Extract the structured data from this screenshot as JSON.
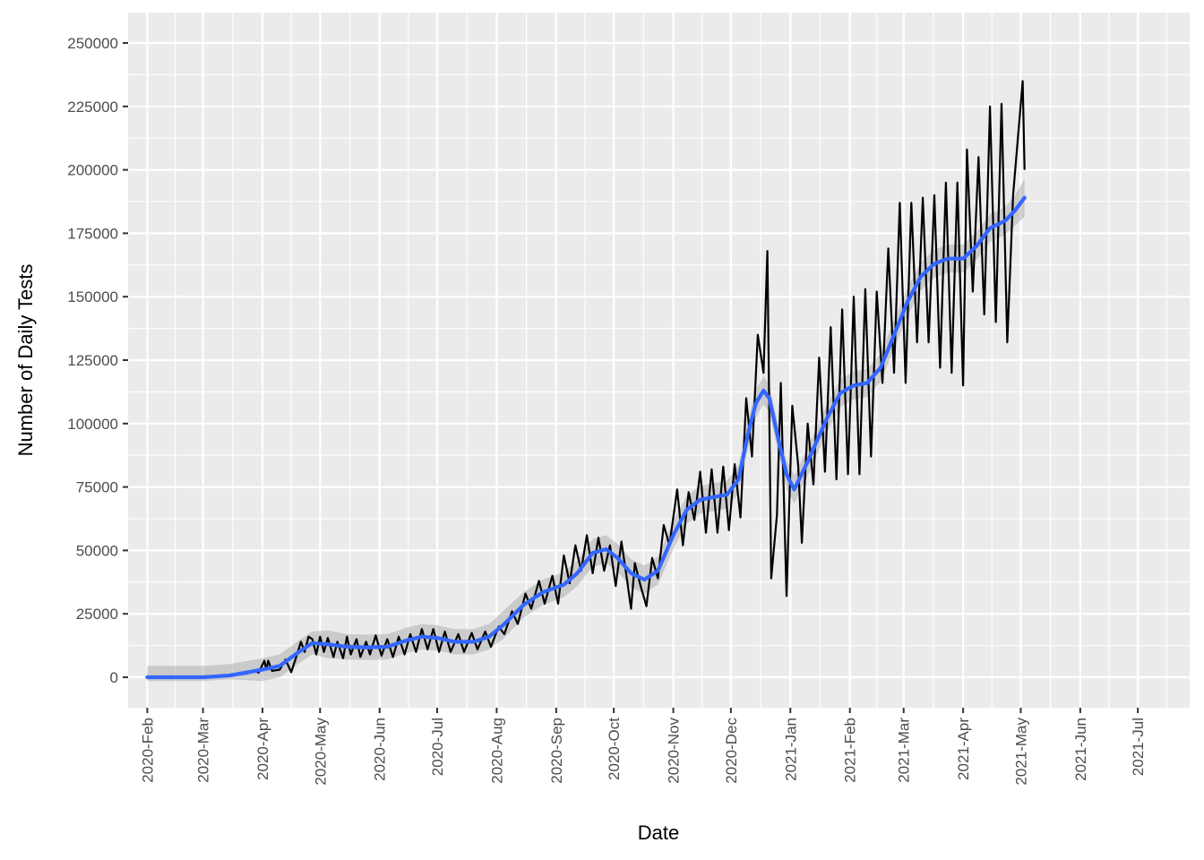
{
  "chart_data": {
    "type": "line",
    "title": "",
    "xlabel": "Date",
    "ylabel": "Number of Daily Tests",
    "xlim": [
      "2020-01-22",
      "2021-07-28"
    ],
    "ylim": [
      -12000,
      262000
    ],
    "grid": true,
    "legend": "none",
    "x_ticks": [
      {
        "date": "2020-02-01",
        "label": "2020-Feb"
      },
      {
        "date": "2020-03-01",
        "label": "2020-Mar"
      },
      {
        "date": "2020-04-01",
        "label": "2020-Apr"
      },
      {
        "date": "2020-05-01",
        "label": "2020-May"
      },
      {
        "date": "2020-06-01",
        "label": "2020-Jun"
      },
      {
        "date": "2020-07-01",
        "label": "2020-Jul"
      },
      {
        "date": "2020-08-01",
        "label": "2020-Aug"
      },
      {
        "date": "2020-09-01",
        "label": "2020-Sep"
      },
      {
        "date": "2020-10-01",
        "label": "2020-Oct"
      },
      {
        "date": "2020-11-01",
        "label": "2020-Nov"
      },
      {
        "date": "2020-12-01",
        "label": "2020-Dec"
      },
      {
        "date": "2021-01-01",
        "label": "2021-Jan"
      },
      {
        "date": "2021-02-01",
        "label": "2021-Feb"
      },
      {
        "date": "2021-03-01",
        "label": "2021-Mar"
      },
      {
        "date": "2021-04-01",
        "label": "2021-Apr"
      },
      {
        "date": "2021-05-01",
        "label": "2021-May"
      },
      {
        "date": "2021-06-01",
        "label": "2021-Jun"
      },
      {
        "date": "2021-07-01",
        "label": "2021-Jul"
      }
    ],
    "y_ticks": [
      {
        "value": 0,
        "label": "0"
      },
      {
        "value": 25000,
        "label": "25000"
      },
      {
        "value": 50000,
        "label": "50000"
      },
      {
        "value": 75000,
        "label": "75000"
      },
      {
        "value": 100000,
        "label": "100000"
      },
      {
        "value": 125000,
        "label": "125000"
      },
      {
        "value": 150000,
        "label": "150000"
      },
      {
        "value": 175000,
        "label": "175000"
      },
      {
        "value": 200000,
        "label": "200000"
      },
      {
        "value": 225000,
        "label": "225000"
      },
      {
        "value": 250000,
        "label": "250000"
      }
    ],
    "series": [
      {
        "kind": "daily",
        "color": "#000000",
        "points": [
          [
            "2020-02-01",
            0
          ],
          [
            "2020-02-15",
            0
          ],
          [
            "2020-03-01",
            0
          ],
          [
            "2020-03-10",
            200
          ],
          [
            "2020-03-18",
            800
          ],
          [
            "2020-03-24",
            1500
          ],
          [
            "2020-03-28",
            2500
          ],
          [
            "2020-03-30",
            1800
          ],
          [
            "2020-04-02",
            6500
          ],
          [
            "2020-04-03",
            3000
          ],
          [
            "2020-04-04",
            6500
          ],
          [
            "2020-04-06",
            2500
          ],
          [
            "2020-04-10",
            3000
          ],
          [
            "2020-04-13",
            7000
          ],
          [
            "2020-04-16",
            2000
          ],
          [
            "2020-04-19",
            9000
          ],
          [
            "2020-04-21",
            14000
          ],
          [
            "2020-04-23",
            10000
          ],
          [
            "2020-04-25",
            16000
          ],
          [
            "2020-04-27",
            15000
          ],
          [
            "2020-04-29",
            9000
          ],
          [
            "2020-05-01",
            16000
          ],
          [
            "2020-05-03",
            10000
          ],
          [
            "2020-05-05",
            15500
          ],
          [
            "2020-05-08",
            8000
          ],
          [
            "2020-05-10",
            14000
          ],
          [
            "2020-05-13",
            7500
          ],
          [
            "2020-05-15",
            16000
          ],
          [
            "2020-05-17",
            9000
          ],
          [
            "2020-05-20",
            15000
          ],
          [
            "2020-05-22",
            8000
          ],
          [
            "2020-05-25",
            14000
          ],
          [
            "2020-05-27",
            9000
          ],
          [
            "2020-05-30",
            16500
          ],
          [
            "2020-06-02",
            8500
          ],
          [
            "2020-06-05",
            15000
          ],
          [
            "2020-06-08",
            8000
          ],
          [
            "2020-06-11",
            16000
          ],
          [
            "2020-06-14",
            9000
          ],
          [
            "2020-06-17",
            17000
          ],
          [
            "2020-06-20",
            10000
          ],
          [
            "2020-06-23",
            19000
          ],
          [
            "2020-06-26",
            11000
          ],
          [
            "2020-06-29",
            19000
          ],
          [
            "2020-07-02",
            10000
          ],
          [
            "2020-07-05",
            18000
          ],
          [
            "2020-07-08",
            10000
          ],
          [
            "2020-07-12",
            17000
          ],
          [
            "2020-07-15",
            10000
          ],
          [
            "2020-07-19",
            17500
          ],
          [
            "2020-07-22",
            11000
          ],
          [
            "2020-07-26",
            18000
          ],
          [
            "2020-07-29",
            12000
          ],
          [
            "2020-08-02",
            20000
          ],
          [
            "2020-08-05",
            17000
          ],
          [
            "2020-08-09",
            26000
          ],
          [
            "2020-08-12",
            21000
          ],
          [
            "2020-08-16",
            33000
          ],
          [
            "2020-08-19",
            27000
          ],
          [
            "2020-08-23",
            38000
          ],
          [
            "2020-08-26",
            29000
          ],
          [
            "2020-08-30",
            40000
          ],
          [
            "2020-09-02",
            29000
          ],
          [
            "2020-09-05",
            48000
          ],
          [
            "2020-09-08",
            37000
          ],
          [
            "2020-09-11",
            52000
          ],
          [
            "2020-09-14",
            42000
          ],
          [
            "2020-09-17",
            56000
          ],
          [
            "2020-09-20",
            41000
          ],
          [
            "2020-09-23",
            55000
          ],
          [
            "2020-09-26",
            42000
          ],
          [
            "2020-09-29",
            52000
          ],
          [
            "2020-10-02",
            36000
          ],
          [
            "2020-10-05",
            53500
          ],
          [
            "2020-10-08",
            38000
          ],
          [
            "2020-10-10",
            27000
          ],
          [
            "2020-10-12",
            45000
          ],
          [
            "2020-10-15",
            36000
          ],
          [
            "2020-10-18",
            28000
          ],
          [
            "2020-10-21",
            47000
          ],
          [
            "2020-10-24",
            39000
          ],
          [
            "2020-10-27",
            60000
          ],
          [
            "2020-10-30",
            52000
          ],
          [
            "2020-11-03",
            74000
          ],
          [
            "2020-11-06",
            52000
          ],
          [
            "2020-11-09",
            73000
          ],
          [
            "2020-11-12",
            62000
          ],
          [
            "2020-11-15",
            81000
          ],
          [
            "2020-11-18",
            57000
          ],
          [
            "2020-11-21",
            82000
          ],
          [
            "2020-11-24",
            57000
          ],
          [
            "2020-11-27",
            83000
          ],
          [
            "2020-11-30",
            58000
          ],
          [
            "2020-12-03",
            84000
          ],
          [
            "2020-12-06",
            63000
          ],
          [
            "2020-12-09",
            110000
          ],
          [
            "2020-12-12",
            87000
          ],
          [
            "2020-12-15",
            135000
          ],
          [
            "2020-12-18",
            120000
          ],
          [
            "2020-12-20",
            168000
          ],
          [
            "2020-12-22",
            39000
          ],
          [
            "2020-12-25",
            64000
          ],
          [
            "2020-12-27",
            116000
          ],
          [
            "2020-12-30",
            32000
          ],
          [
            "2021-01-02",
            107000
          ],
          [
            "2021-01-05",
            84000
          ],
          [
            "2021-01-07",
            53000
          ],
          [
            "2021-01-10",
            100000
          ],
          [
            "2021-01-13",
            76000
          ],
          [
            "2021-01-16",
            126000
          ],
          [
            "2021-01-19",
            81000
          ],
          [
            "2021-01-22",
            138000
          ],
          [
            "2021-01-25",
            78000
          ],
          [
            "2021-01-28",
            145000
          ],
          [
            "2021-01-31",
            80000
          ],
          [
            "2021-02-03",
            150000
          ],
          [
            "2021-02-06",
            80000
          ],
          [
            "2021-02-09",
            153000
          ],
          [
            "2021-02-12",
            87000
          ],
          [
            "2021-02-15",
            152000
          ],
          [
            "2021-02-18",
            116000
          ],
          [
            "2021-02-21",
            169000
          ],
          [
            "2021-02-24",
            120000
          ],
          [
            "2021-02-27",
            187000
          ],
          [
            "2021-03-02",
            116000
          ],
          [
            "2021-03-05",
            187000
          ],
          [
            "2021-03-08",
            132000
          ],
          [
            "2021-03-11",
            189000
          ],
          [
            "2021-03-14",
            132000
          ],
          [
            "2021-03-17",
            190000
          ],
          [
            "2021-03-20",
            122000
          ],
          [
            "2021-03-23",
            195000
          ],
          [
            "2021-03-26",
            120000
          ],
          [
            "2021-03-29",
            195000
          ],
          [
            "2021-04-01",
            115000
          ],
          [
            "2021-04-03",
            208000
          ],
          [
            "2021-04-06",
            152000
          ],
          [
            "2021-04-09",
            205000
          ],
          [
            "2021-04-12",
            143000
          ],
          [
            "2021-04-15",
            225000
          ],
          [
            "2021-04-18",
            140000
          ],
          [
            "2021-04-21",
            226000
          ],
          [
            "2021-04-24",
            132000
          ],
          [
            "2021-04-27",
            190000
          ],
          [
            "2021-05-02",
            235000
          ],
          [
            "2021-05-03",
            200000
          ]
        ]
      },
      {
        "kind": "smooth",
        "color": "#3366ff",
        "points": [
          [
            "2020-02-01",
            0
          ],
          [
            "2020-03-01",
            0
          ],
          [
            "2020-03-15",
            700
          ],
          [
            "2020-04-01",
            3000
          ],
          [
            "2020-04-10",
            4500
          ],
          [
            "2020-04-20",
            10000
          ],
          [
            "2020-04-27",
            13500
          ],
          [
            "2020-05-05",
            13000
          ],
          [
            "2020-05-15",
            12000
          ],
          [
            "2020-05-25",
            11800
          ],
          [
            "2020-06-05",
            12000
          ],
          [
            "2020-06-15",
            14500
          ],
          [
            "2020-06-23",
            16000
          ],
          [
            "2020-07-01",
            15500
          ],
          [
            "2020-07-10",
            14000
          ],
          [
            "2020-07-20",
            14000
          ],
          [
            "2020-07-28",
            16000
          ],
          [
            "2020-08-05",
            21000
          ],
          [
            "2020-08-15",
            28500
          ],
          [
            "2020-08-25",
            33500
          ],
          [
            "2020-09-05",
            36500
          ],
          [
            "2020-09-12",
            41000
          ],
          [
            "2020-09-20",
            49000
          ],
          [
            "2020-09-27",
            50500
          ],
          [
            "2020-10-03",
            47000
          ],
          [
            "2020-10-10",
            41000
          ],
          [
            "2020-10-17",
            38500
          ],
          [
            "2020-10-24",
            42000
          ],
          [
            "2020-11-01",
            56000
          ],
          [
            "2020-11-08",
            66000
          ],
          [
            "2020-11-15",
            70000
          ],
          [
            "2020-11-22",
            71000
          ],
          [
            "2020-11-29",
            72000
          ],
          [
            "2020-12-05",
            78000
          ],
          [
            "2020-12-10",
            96000
          ],
          [
            "2020-12-14",
            108000
          ],
          [
            "2020-12-18",
            113000
          ],
          [
            "2020-12-21",
            110000
          ],
          [
            "2020-12-26",
            93000
          ],
          [
            "2020-12-30",
            80000
          ],
          [
            "2021-01-03",
            74000
          ],
          [
            "2021-01-10",
            85000
          ],
          [
            "2021-01-20",
            102000
          ],
          [
            "2021-01-27",
            112000
          ],
          [
            "2021-02-03",
            115000
          ],
          [
            "2021-02-10",
            116000
          ],
          [
            "2021-02-17",
            122000
          ],
          [
            "2021-02-24",
            135000
          ],
          [
            "2021-03-03",
            148000
          ],
          [
            "2021-03-10",
            158000
          ],
          [
            "2021-03-17",
            163000
          ],
          [
            "2021-03-24",
            165000
          ],
          [
            "2021-04-01",
            165000
          ],
          [
            "2021-04-08",
            170000
          ],
          [
            "2021-04-15",
            177000
          ],
          [
            "2021-04-23",
            180000
          ],
          [
            "2021-04-28",
            184000
          ],
          [
            "2021-05-03",
            189000
          ]
        ],
        "band_halfwidth": [
          4500,
          4500,
          4500,
          4500,
          4500,
          4500,
          4500,
          5500,
          5000,
          5000,
          5000,
          5000,
          5000,
          5000,
          5000,
          5000,
          5000,
          5500,
          5000,
          5000,
          5000,
          5000,
          5500,
          5500,
          5500,
          5500,
          5500,
          5500,
          5500,
          5500,
          5500,
          5500,
          5500,
          5500,
          5500,
          5500,
          5500,
          5500,
          5500,
          5500,
          5500,
          5500,
          5500,
          5500,
          5500,
          5500,
          5500,
          5500,
          5500,
          5500,
          5500,
          5500,
          5500,
          5500,
          5500,
          5500,
          6000,
          7500
        ]
      }
    ]
  }
}
